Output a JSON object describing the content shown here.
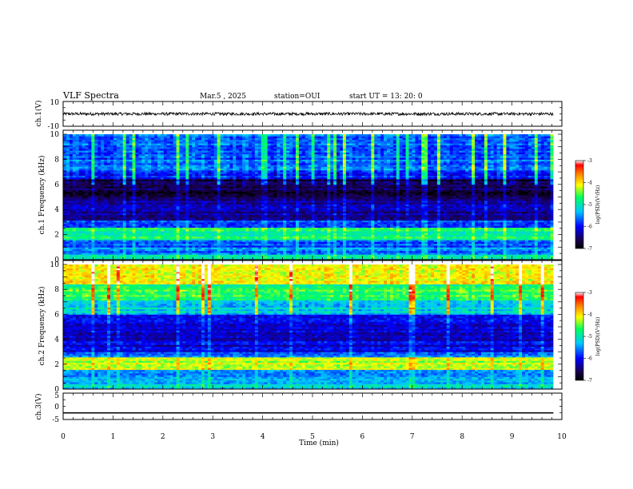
{
  "header": {
    "title": "VLF Spectra",
    "date": "Mar.5 , 2025",
    "station": "station=OUI",
    "start": "start UT = 13: 20: 0"
  },
  "colors": {
    "colormap": [
      "#1a0050",
      "#0000ff",
      "#00c8ff",
      "#00ff60",
      "#ffff00",
      "#ff8000",
      "#ff0000",
      "#ffffff"
    ],
    "waveform": "#000000",
    "background_dark": "#0a0a3a"
  },
  "chart_data": [
    {
      "type": "line",
      "panel": "ch1-waveform",
      "ylabel": "ch.1(V)",
      "ylim": [
        -10,
        10
      ],
      "yticks": [
        "10",
        "-10"
      ],
      "x_range_min": [
        0,
        9.83
      ],
      "approx_level": 0,
      "approx_amplitude": 1.2
    },
    {
      "type": "heatmap",
      "panel": "ch1-spectrogram",
      "ylabel": "ch.1 Frequency (kHz)",
      "xlim": [
        0,
        10
      ],
      "ylim": [
        0,
        10
      ],
      "yticks": [
        "0",
        "2",
        "4",
        "6",
        "8",
        "10"
      ],
      "colorbar": {
        "label": "log(PSD)(V²/Hz)",
        "range": [
          -7,
          -3
        ],
        "ticks": [
          "-3",
          "-4",
          "-5",
          "-6",
          "-7"
        ]
      },
      "band_profile": [
        {
          "f": [
            0.0,
            0.5
          ],
          "level": 0.5
        },
        {
          "f": [
            0.5,
            1.0
          ],
          "level": 0.35
        },
        {
          "f": [
            1.0,
            1.6
          ],
          "level": 0.3
        },
        {
          "f": [
            1.6,
            2.6
          ],
          "level": 0.55
        },
        {
          "f": [
            2.6,
            3.2
          ],
          "level": 0.3
        },
        {
          "f": [
            3.2,
            4.8
          ],
          "level": 0.15
        },
        {
          "f": [
            4.8,
            6.4
          ],
          "level": 0.08
        },
        {
          "f": [
            6.4,
            7.0
          ],
          "level": 0.25
        },
        {
          "f": [
            7.0,
            10.0
          ],
          "level": 0.33
        }
      ]
    },
    {
      "type": "heatmap",
      "panel": "ch2-spectrogram",
      "ylabel": "ch.2 Frequency (kHz)",
      "xlim": [
        0,
        10
      ],
      "ylim": [
        0,
        10
      ],
      "yticks": [
        "0",
        "2",
        "4",
        "6",
        "8",
        "10"
      ],
      "colorbar": {
        "label": "log(PSD)(V²/Hz)",
        "range": [
          -7,
          -3
        ],
        "ticks": [
          "-3",
          "-4",
          "-5",
          "-6",
          "-7"
        ]
      },
      "band_profile": [
        {
          "f": [
            0.0,
            0.5
          ],
          "level": 0.45
        },
        {
          "f": [
            0.5,
            1.6
          ],
          "level": 0.4
        },
        {
          "f": [
            1.6,
            2.6
          ],
          "level": 0.68
        },
        {
          "f": [
            2.6,
            3.0
          ],
          "level": 0.35
        },
        {
          "f": [
            3.0,
            6.0
          ],
          "level": 0.22
        },
        {
          "f": [
            6.0,
            7.2
          ],
          "level": 0.45
        },
        {
          "f": [
            7.2,
            8.4
          ],
          "level": 0.58
        },
        {
          "f": [
            8.4,
            10.0
          ],
          "level": 0.72
        }
      ]
    },
    {
      "type": "line",
      "panel": "ch3-waveform",
      "ylabel": "ch.3(V)",
      "xlabel": "Time (min)",
      "ylim": [
        -5,
        5
      ],
      "yticks": [
        "5",
        "0",
        "-5"
      ],
      "xticks": [
        "0",
        "1",
        "2",
        "3",
        "4",
        "5",
        "6",
        "7",
        "8",
        "9",
        "10"
      ],
      "xlim": [
        0,
        10
      ],
      "x_range_min": [
        0,
        9.83
      ],
      "approx_level": -2.5
    }
  ]
}
